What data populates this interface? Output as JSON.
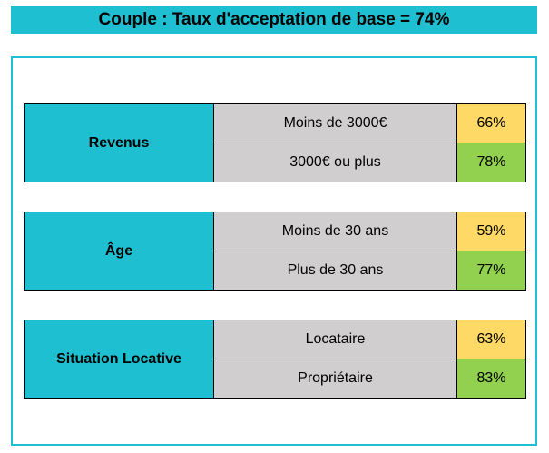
{
  "header": {
    "title": "Couple : Taux d'acceptation de base = 74%"
  },
  "groups": [
    {
      "label": "Revenus",
      "rows": [
        {
          "label": "Moins de 3000€",
          "value": "66%"
        },
        {
          "label": "3000€ ou plus",
          "value": "78%"
        }
      ]
    },
    {
      "label": "Âge",
      "rows": [
        {
          "label": "Moins de 30 ans",
          "value": "59%"
        },
        {
          "label": "Plus de 30 ans",
          "value": "77%"
        }
      ]
    },
    {
      "label": "Situation Locative",
      "rows": [
        {
          "label": "Locataire",
          "value": "63%"
        },
        {
          "label": "Propriétaire",
          "value": "83%"
        }
      ]
    }
  ]
}
